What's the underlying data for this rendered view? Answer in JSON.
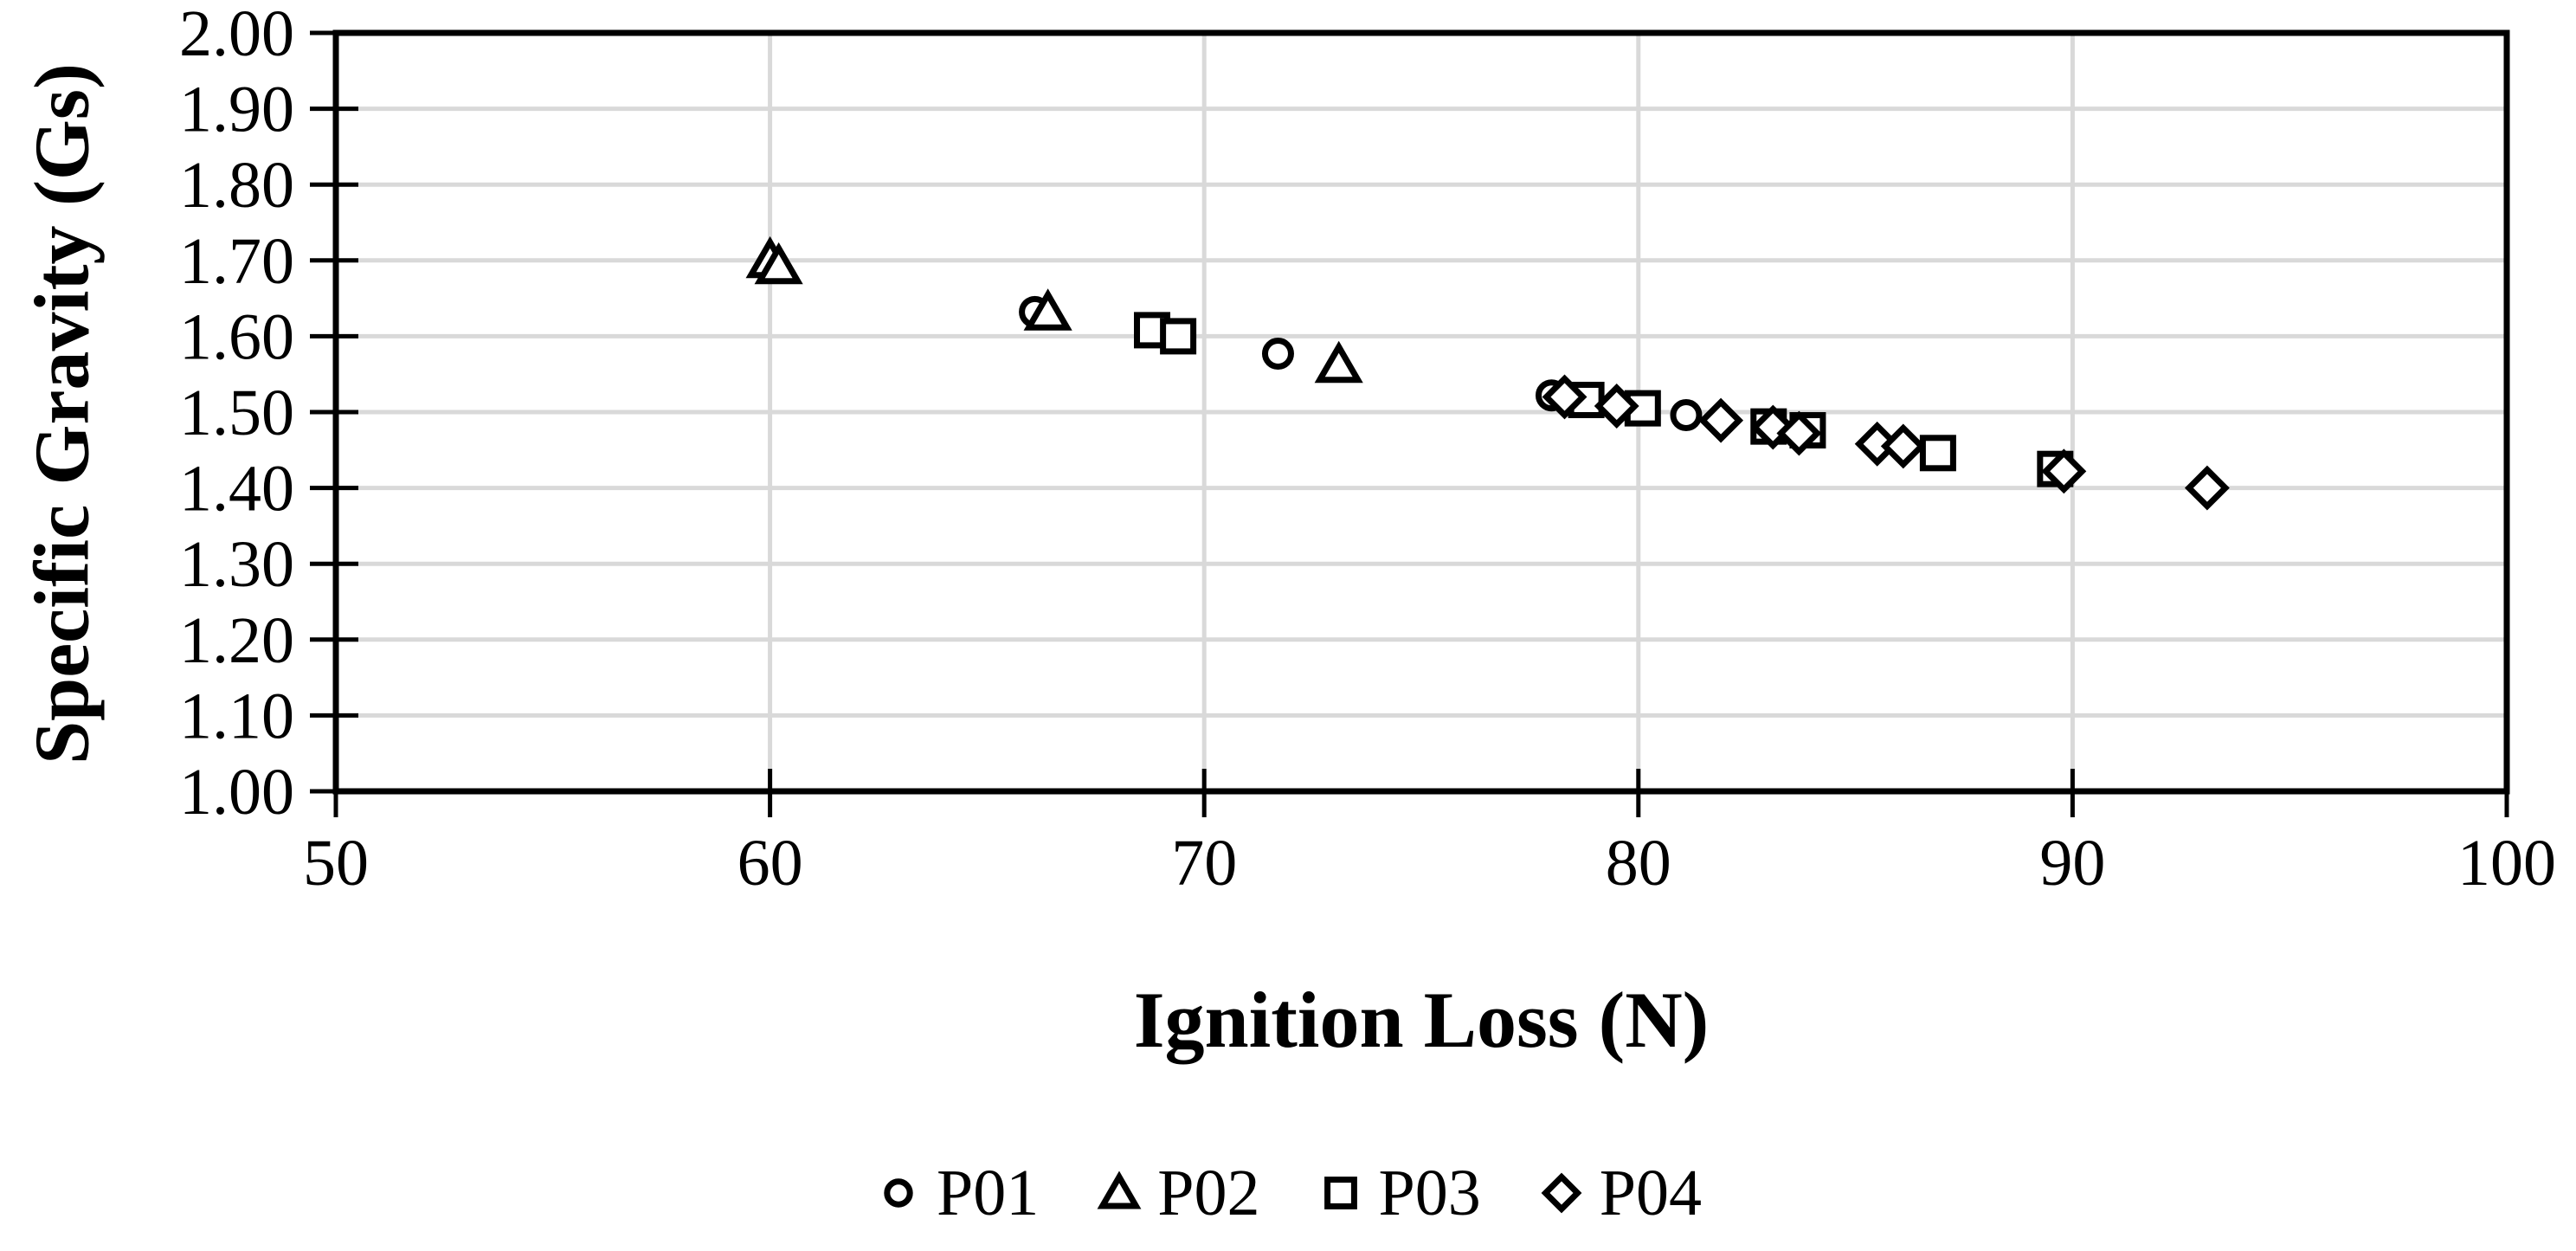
{
  "chart_data": {
    "type": "scatter",
    "title": "",
    "xlabel": "Ignition Loss (N)",
    "ylabel": "Specific Gravity (Gs)",
    "xlim": [
      50,
      100
    ],
    "ylim": [
      1.0,
      2.0
    ],
    "x_ticks": [
      50,
      60,
      70,
      80,
      90,
      100
    ],
    "y_ticks": [
      1.0,
      1.1,
      1.2,
      1.3,
      1.4,
      1.5,
      1.6,
      1.7,
      1.8,
      1.9,
      2.0
    ],
    "x_tick_labels": [
      "50",
      "60",
      "70",
      "80",
      "90",
      "100"
    ],
    "y_tick_labels": [
      "1.00",
      "1.10",
      "1.20",
      "1.30",
      "1.40",
      "1.50",
      "1.60",
      "1.70",
      "1.80",
      "1.90",
      "2.00"
    ],
    "grid": "on",
    "legend_position": "bottom-center",
    "series": [
      {
        "name": "P01",
        "marker": "circle",
        "points": [
          [
            66.1,
            1.632
          ],
          [
            71.7,
            1.577
          ],
          [
            78.0,
            1.522
          ],
          [
            81.1,
            1.496
          ]
        ]
      },
      {
        "name": "P02",
        "marker": "triangle",
        "points": [
          [
            60.0,
            1.7
          ],
          [
            60.2,
            1.692
          ],
          [
            66.4,
            1.631
          ],
          [
            73.1,
            1.562
          ]
        ]
      },
      {
        "name": "P03",
        "marker": "square",
        "points": [
          [
            68.8,
            1.608
          ],
          [
            69.4,
            1.6
          ],
          [
            78.8,
            1.516
          ],
          [
            80.1,
            1.505
          ],
          [
            83.0,
            1.481
          ],
          [
            83.9,
            1.476
          ],
          [
            86.9,
            1.446
          ],
          [
            89.6,
            1.425
          ]
        ]
      },
      {
        "name": "P04",
        "marker": "diamond",
        "points": [
          [
            78.3,
            1.52
          ],
          [
            79.5,
            1.508
          ],
          [
            81.9,
            1.489
          ],
          [
            83.1,
            1.48
          ],
          [
            83.7,
            1.472
          ],
          [
            85.5,
            1.458
          ],
          [
            86.1,
            1.455
          ],
          [
            89.8,
            1.422
          ],
          [
            93.1,
            1.4
          ]
        ]
      }
    ],
    "colors": {
      "marker_stroke": "#000000",
      "marker_fill": "#ffffff",
      "grid": "#d9d9d9",
      "axis": "#000000",
      "background": "#ffffff"
    }
  }
}
